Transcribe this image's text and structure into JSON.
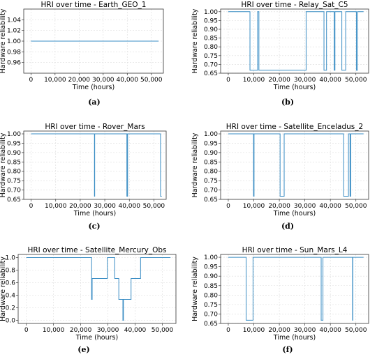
{
  "figure": {
    "panels": [
      {
        "caption": "(a)"
      },
      {
        "caption": "(b)"
      },
      {
        "caption": "(c)"
      },
      {
        "caption": "(d)"
      },
      {
        "caption": "(e)"
      },
      {
        "caption": "(f)"
      }
    ]
  },
  "chart_data": [
    {
      "type": "line",
      "title": "HRI over time - Earth_GEO_1",
      "xlabel": "Time (hours)",
      "ylabel": "Hardware reliability",
      "xlim": [
        -3000,
        55000
      ],
      "ylim": [
        0.94,
        1.06
      ],
      "xticks": [
        0,
        10000,
        20000,
        30000,
        40000,
        50000
      ],
      "xtick_labels": [
        "0",
        "10,000",
        "20,000",
        "30,000",
        "40,000",
        "50,000"
      ],
      "yticks": [
        0.96,
        0.98,
        1.0,
        1.02,
        1.04
      ],
      "ytick_labels": [
        "0.96",
        "0.98",
        "1.00",
        "1.02",
        "1.04"
      ],
      "grid": true,
      "series": [
        {
          "x": [
            0,
            53000
          ],
          "y": [
            1.0,
            1.0
          ]
        }
      ]
    },
    {
      "type": "line",
      "title": "HRI over time - Relay_Sat_C5",
      "xlabel": "Time (hours)",
      "ylabel": "Hardware reliability",
      "xlim": [
        -3000,
        55000
      ],
      "ylim": [
        0.65,
        1.015
      ],
      "xticks": [
        0,
        10000,
        20000,
        30000,
        40000,
        50000
      ],
      "xtick_labels": [
        "0",
        "10,000",
        "20,000",
        "30,000",
        "40,000",
        "50,000"
      ],
      "yticks": [
        0.65,
        0.7,
        0.75,
        0.8,
        0.85,
        0.9,
        0.95,
        1.0
      ],
      "ytick_labels": [
        "0.65",
        "0.70",
        "0.75",
        "0.80",
        "0.85",
        "0.90",
        "0.95",
        "1.00"
      ],
      "grid": true,
      "series": [
        {
          "x": [
            0,
            8500,
            8500,
            11500,
            11500,
            12000,
            12000,
            30500,
            30500,
            30700,
            30700,
            37500,
            37500,
            38500,
            38500,
            41500,
            41500,
            41800,
            41800,
            44500,
            44500,
            46000,
            46000,
            50200,
            50200,
            50600,
            50600,
            53000
          ],
          "y": [
            1.0,
            1.0,
            0.667,
            0.667,
            1.0,
            1.0,
            0.667,
            0.667,
            1.0,
            1.0,
            1.0,
            1.0,
            0.667,
            0.667,
            1.0,
            1.0,
            0.667,
            0.667,
            1.0,
            1.0,
            0.667,
            0.667,
            1.0,
            1.0,
            0.667,
            0.667,
            1.0,
            1.0
          ]
        }
      ]
    },
    {
      "type": "line",
      "title": "HRI over time - Rover_Mars",
      "xlabel": "Time (hours)",
      "ylabel": "Hardware reliability",
      "xlim": [
        -3000,
        55000
      ],
      "ylim": [
        0.65,
        1.015
      ],
      "xticks": [
        0,
        10000,
        20000,
        30000,
        40000,
        50000
      ],
      "xtick_labels": [
        "0",
        "10,000",
        "20,000",
        "30,000",
        "40,000",
        "50,000"
      ],
      "yticks": [
        0.65,
        0.7,
        0.75,
        0.8,
        0.85,
        0.9,
        0.95,
        1.0
      ],
      "ytick_labels": [
        "0.65",
        "0.70",
        "0.75",
        "0.80",
        "0.85",
        "0.90",
        "0.95",
        "1.00"
      ],
      "grid": true,
      "series": [
        {
          "x": [
            0,
            25800,
            25800,
            25900,
            25900,
            39000,
            39000,
            39300,
            39300,
            52700,
            52700,
            53200
          ],
          "y": [
            1.0,
            1.0,
            0.667,
            0.667,
            1.0,
            1.0,
            0.667,
            0.667,
            1.0,
            1.0,
            0.667,
            0.667
          ]
        }
      ]
    },
    {
      "type": "line",
      "title": "HRI over time - Satellite_Enceladus_2",
      "xlabel": "Time (hours)",
      "ylabel": "Hardware reliability",
      "xlim": [
        -3000,
        55000
      ],
      "ylim": [
        0.65,
        1.015
      ],
      "xticks": [
        0,
        10000,
        20000,
        30000,
        40000,
        50000
      ],
      "xtick_labels": [
        "0",
        "10,000",
        "20,000",
        "30,000",
        "40,000",
        "50,000"
      ],
      "yticks": [
        0.65,
        0.7,
        0.75,
        0.8,
        0.85,
        0.9,
        0.95,
        1.0
      ],
      "ytick_labels": [
        "0.65",
        "0.70",
        "0.75",
        "0.80",
        "0.85",
        "0.90",
        "0.95",
        "1.00"
      ],
      "grid": true,
      "series": [
        {
          "x": [
            0,
            9900,
            9900,
            10100,
            10100,
            20300,
            20300,
            21900,
            21900,
            45200,
            45200,
            47100,
            47100,
            47700,
            47700,
            48000,
            48000,
            53000
          ],
          "y": [
            1.0,
            1.0,
            0.667,
            0.667,
            1.0,
            1.0,
            0.667,
            0.667,
            1.0,
            1.0,
            0.667,
            0.667,
            1.0,
            1.0,
            0.667,
            0.667,
            1.0,
            1.0
          ]
        }
      ]
    },
    {
      "type": "line",
      "title": "HRI over time - Satellite_Mercury_Obs",
      "xlabel": "Time (hours)",
      "ylabel": "Hardware reliability",
      "xlim": [
        -3000,
        55000
      ],
      "ylim": [
        -0.05,
        1.05
      ],
      "xticks": [
        0,
        10000,
        20000,
        30000,
        40000,
        50000
      ],
      "xtick_labels": [
        "0",
        "10,000",
        "20,000",
        "30,000",
        "40,000",
        "50,000"
      ],
      "yticks": [
        0.0,
        0.2,
        0.4,
        0.6,
        0.8,
        1.0
      ],
      "ytick_labels": [
        "0.0",
        "0.2",
        "0.4",
        "0.6",
        "0.8",
        "1.0"
      ],
      "grid": true,
      "series": [
        {
          "x": [
            0,
            24000,
            24000,
            24200,
            24200,
            24400,
            24400,
            29800,
            29800,
            32500,
            32500,
            34000,
            34000,
            35500,
            35500,
            35700,
            35700,
            38500,
            38500,
            42000,
            42000,
            53000
          ],
          "y": [
            1.0,
            1.0,
            0.333,
            0.333,
            0.667,
            0.667,
            0.667,
            0.667,
            1.0,
            1.0,
            0.667,
            0.667,
            0.333,
            0.333,
            0.0,
            0.0,
            0.333,
            0.333,
            0.667,
            0.667,
            1.0,
            1.0
          ]
        }
      ]
    },
    {
      "type": "line",
      "title": "HRI over time - Sun_Mars_L4",
      "xlabel": "Time (hours)",
      "ylabel": "Hardware reliability",
      "xlim": [
        -3000,
        55000
      ],
      "ylim": [
        0.65,
        1.015
      ],
      "xticks": [
        0,
        10000,
        20000,
        30000,
        40000,
        50000
      ],
      "xtick_labels": [
        "0",
        "10,000",
        "20,000",
        "30,000",
        "40,000",
        "50,000"
      ],
      "yticks": [
        0.65,
        0.7,
        0.75,
        0.8,
        0.85,
        0.9,
        0.95,
        1.0
      ],
      "ytick_labels": [
        "0.65",
        "0.70",
        "0.75",
        "0.80",
        "0.85",
        "0.90",
        "0.95",
        "1.00"
      ],
      "grid": true,
      "series": [
        {
          "x": [
            0,
            7000,
            7000,
            9700,
            9700,
            36400,
            36400,
            37100,
            37100,
            48700,
            48700,
            48800,
            48800,
            53000
          ],
          "y": [
            1.0,
            1.0,
            0.667,
            0.667,
            1.0,
            1.0,
            0.667,
            0.667,
            1.0,
            1.0,
            0.667,
            0.667,
            1.0,
            1.0
          ]
        }
      ]
    }
  ]
}
